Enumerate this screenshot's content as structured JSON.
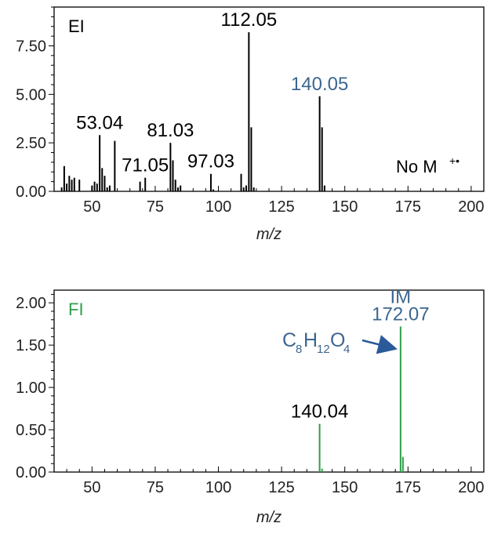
{
  "chart_data": [
    {
      "type": "bar",
      "panel_label": "EI",
      "xlabel": "m/z",
      "xlim": [
        35,
        205
      ],
      "ylim": [
        0,
        9.5
      ],
      "x_ticks": [
        50,
        75,
        100,
        125,
        150,
        175,
        200
      ],
      "y_ticks": [
        0.0,
        2.5,
        5.0,
        7.5
      ],
      "y_tick_labels": [
        "0.00",
        "2.50",
        "5.00",
        "7.50"
      ],
      "bar_color": "#000000",
      "peaks": [
        {
          "x": 38,
          "y": 0.2
        },
        {
          "x": 39,
          "y": 1.3
        },
        {
          "x": 40,
          "y": 0.4
        },
        {
          "x": 41,
          "y": 0.8
        },
        {
          "x": 42,
          "y": 0.6
        },
        {
          "x": 43,
          "y": 0.7
        },
        {
          "x": 45,
          "y": 0.6
        },
        {
          "x": 50,
          "y": 0.3
        },
        {
          "x": 51,
          "y": 0.5
        },
        {
          "x": 52,
          "y": 0.4
        },
        {
          "x": 53.04,
          "y": 2.9
        },
        {
          "x": 54,
          "y": 1.2
        },
        {
          "x": 55,
          "y": 0.8
        },
        {
          "x": 56,
          "y": 0.2
        },
        {
          "x": 57,
          "y": 0.3
        },
        {
          "x": 59,
          "y": 2.6
        },
        {
          "x": 69,
          "y": 0.5
        },
        {
          "x": 71.05,
          "y": 0.7
        },
        {
          "x": 81.03,
          "y": 2.5
        },
        {
          "x": 82,
          "y": 1.6
        },
        {
          "x": 83,
          "y": 0.6
        },
        {
          "x": 84,
          "y": 0.2
        },
        {
          "x": 85,
          "y": 0.3
        },
        {
          "x": 97.03,
          "y": 0.9
        },
        {
          "x": 98,
          "y": 0.1
        },
        {
          "x": 109,
          "y": 0.9
        },
        {
          "x": 110,
          "y": 0.2
        },
        {
          "x": 111,
          "y": 0.3
        },
        {
          "x": 112.05,
          "y": 8.2
        },
        {
          "x": 113,
          "y": 3.3
        },
        {
          "x": 114,
          "y": 0.2
        },
        {
          "x": 140.05,
          "y": 4.9
        },
        {
          "x": 141,
          "y": 3.3
        },
        {
          "x": 142,
          "y": 0.3
        }
      ],
      "annotations": [
        {
          "text": "53.04",
          "x": 53.04,
          "y": 2.9,
          "color": "#000000"
        },
        {
          "text": "71.05",
          "x": 71.05,
          "y": 0.7,
          "color": "#000000"
        },
        {
          "text": "81.03",
          "x": 81.03,
          "y": 2.5,
          "color": "#000000"
        },
        {
          "text": "97.03",
          "x": 97.03,
          "y": 0.9,
          "color": "#000000"
        },
        {
          "text": "112.05",
          "x": 112.05,
          "y": 8.2,
          "color": "#000000"
        },
        {
          "text": "140.05",
          "x": 140.05,
          "y": 4.9,
          "color": "#3d6690"
        }
      ],
      "note": {
        "base": "No M",
        "sup": "+•"
      }
    },
    {
      "type": "bar",
      "panel_label": "FI",
      "panel_label_color": "#2f9e4a",
      "xlabel": "m/z",
      "xlim": [
        35,
        205
      ],
      "ylim": [
        0,
        2.15
      ],
      "x_ticks": [
        50,
        75,
        100,
        125,
        150,
        175,
        200
      ],
      "y_ticks": [
        0.0,
        0.5,
        1.0,
        1.5,
        2.0
      ],
      "y_tick_labels": [
        "0.00",
        "0.50",
        "1.00",
        "1.50",
        "2.00"
      ],
      "bar_color": "#2f9e4a",
      "peaks": [
        {
          "x": 140.04,
          "y": 0.57
        },
        {
          "x": 141,
          "y": 0.04
        },
        {
          "x": 172.07,
          "y": 1.72
        },
        {
          "x": 173,
          "y": 0.18
        }
      ],
      "annotations": [
        {
          "text": "140.04",
          "x": 140.04,
          "y": 0.57,
          "color": "#000000"
        },
        {
          "text": "IM",
          "x": 172.07,
          "y": 1.72,
          "color": "#3d6690",
          "line": "top"
        },
        {
          "text": "172.07",
          "x": 172.07,
          "y": 1.72,
          "color": "#3d6690",
          "line": "bottom"
        }
      ],
      "formula": {
        "parts": [
          {
            "t": "C",
            "sub": false
          },
          {
            "t": "8",
            "sub": true
          },
          {
            "t": "H",
            "sub": false
          },
          {
            "t": "12",
            "sub": true
          },
          {
            "t": "O",
            "sub": false
          },
          {
            "t": "4",
            "sub": true
          }
        ],
        "color": "#3d6690",
        "arrow_to": {
          "x": 170,
          "y": 1.5
        }
      }
    }
  ]
}
